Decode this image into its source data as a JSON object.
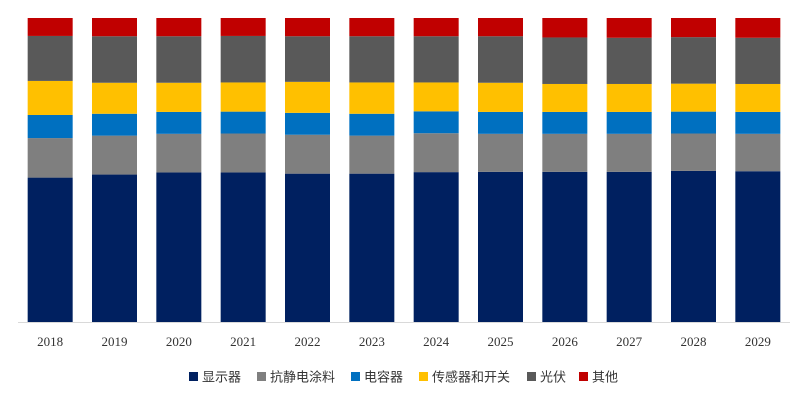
{
  "chart_data": {
    "type": "bar",
    "stacked": true,
    "normalized": true,
    "title": "",
    "xlabel": "",
    "ylabel": "",
    "ylim": [
      0,
      100
    ],
    "grid": false,
    "legend_position": "bottom",
    "categories": [
      "2018",
      "2019",
      "2020",
      "2021",
      "2022",
      "2023",
      "2024",
      "2025",
      "2026",
      "2027",
      "2028",
      "2029"
    ],
    "series": [
      {
        "name": "显示器",
        "color": "#002060",
        "values": [
          47.5,
          48.5,
          49.2,
          49.2,
          48.8,
          48.8,
          49.3,
          49.4,
          49.4,
          49.4,
          49.7,
          49.6
        ]
      },
      {
        "name": "抗静电涂料",
        "color": "#7f7f7f",
        "values": [
          13.0,
          12.8,
          12.7,
          12.8,
          12.8,
          12.5,
          12.8,
          12.5,
          12.5,
          12.5,
          12.3,
          12.3
        ]
      },
      {
        "name": "电容器",
        "color": "#0070c0",
        "values": [
          7.6,
          7.2,
          7.2,
          7.2,
          7.2,
          7.2,
          7.2,
          7.2,
          7.2,
          7.2,
          7.2,
          7.2
        ]
      },
      {
        "name": "传感器和开关",
        "color": "#ffc000",
        "values": [
          11.2,
          10.2,
          9.6,
          9.6,
          10.2,
          10.3,
          9.5,
          9.6,
          9.2,
          9.2,
          9.2,
          9.2
        ]
      },
      {
        "name": "光伏",
        "color": "#595959",
        "values": [
          14.8,
          15.3,
          15.3,
          15.3,
          15.0,
          15.2,
          15.2,
          15.3,
          15.3,
          15.2,
          15.3,
          15.2
        ]
      },
      {
        "name": "其他",
        "color": "#c00000",
        "values": [
          5.9,
          6.0,
          6.0,
          5.9,
          6.0,
          6.0,
          6.0,
          6.0,
          6.4,
          6.5,
          6.3,
          6.5
        ]
      }
    ]
  }
}
